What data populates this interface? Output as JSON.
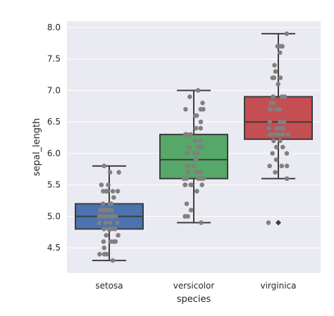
{
  "chart_data": {
    "type": "box",
    "xlabel": "species",
    "ylabel": "sepal_length",
    "ylim": [
      4.1,
      8.1
    ],
    "yticks": [
      "4.5",
      "5.0",
      "5.5",
      "6.0",
      "6.5",
      "7.0",
      "7.5",
      "8.0"
    ],
    "grid": true,
    "categories": [
      "setosa",
      "versicolor",
      "virginica"
    ],
    "colors": {
      "setosa": "#4c72b0",
      "versicolor": "#55a868",
      "virginica": "#c44e52",
      "points": "#808080",
      "background": "#eaeaf2",
      "lines": "#3d3d3d"
    },
    "boxes": [
      {
        "name": "setosa",
        "whisker_low": 4.3,
        "q1": 4.8,
        "median": 5.0,
        "q3": 5.2,
        "whisker_high": 5.8,
        "outliers": []
      },
      {
        "name": "versicolor",
        "whisker_low": 4.9,
        "q1": 5.6,
        "median": 5.9,
        "q3": 6.3,
        "whisker_high": 7.0,
        "outliers": []
      },
      {
        "name": "virginica",
        "whisker_low": 5.6,
        "q1": 6.225,
        "median": 6.5,
        "q3": 6.9,
        "whisker_high": 7.9,
        "outliers": [
          4.9
        ]
      }
    ],
    "points": [
      [
        5.1,
        4.9,
        4.7,
        4.6,
        5.0,
        5.4,
        4.6,
        5.0,
        4.4,
        4.9,
        5.4,
        4.8,
        4.8,
        4.3,
        5.8,
        5.7,
        5.4,
        5.1,
        5.7,
        5.1,
        5.4,
        5.1,
        4.6,
        5.1,
        4.8,
        5.0,
        5.0,
        5.2,
        5.2,
        4.7,
        4.8,
        5.4,
        5.2,
        5.5,
        4.9,
        5.0,
        5.5,
        4.9,
        4.4,
        5.1,
        5.0,
        4.5,
        4.4,
        5.0,
        5.1,
        4.8,
        5.1,
        4.6,
        5.3,
        5.0
      ],
      [
        7.0,
        6.4,
        6.9,
        5.5,
        6.5,
        5.7,
        6.3,
        4.9,
        6.6,
        5.2,
        5.0,
        5.9,
        6.0,
        6.1,
        5.6,
        6.7,
        5.6,
        5.8,
        6.2,
        5.6,
        5.9,
        6.1,
        6.3,
        6.1,
        6.4,
        6.6,
        6.8,
        6.7,
        6.0,
        5.7,
        5.5,
        5.5,
        5.8,
        6.0,
        5.4,
        6.0,
        6.7,
        6.3,
        5.6,
        5.5,
        5.5,
        6.1,
        5.8,
        5.0,
        5.6,
        5.7,
        5.7,
        6.2,
        5.1,
        5.7
      ],
      [
        6.3,
        5.8,
        7.1,
        6.3,
        6.5,
        7.6,
        4.9,
        7.3,
        6.7,
        7.2,
        6.5,
        6.4,
        6.8,
        5.7,
        5.8,
        6.4,
        6.5,
        7.7,
        7.7,
        6.0,
        6.9,
        5.6,
        7.7,
        6.3,
        6.7,
        7.2,
        6.2,
        6.1,
        6.4,
        7.2,
        7.4,
        7.9,
        6.4,
        6.3,
        6.1,
        7.7,
        6.3,
        6.4,
        6.0,
        6.9,
        6.7,
        6.9,
        5.8,
        6.8,
        6.7,
        6.7,
        6.3,
        6.5,
        6.2,
        5.9
      ]
    ]
  }
}
